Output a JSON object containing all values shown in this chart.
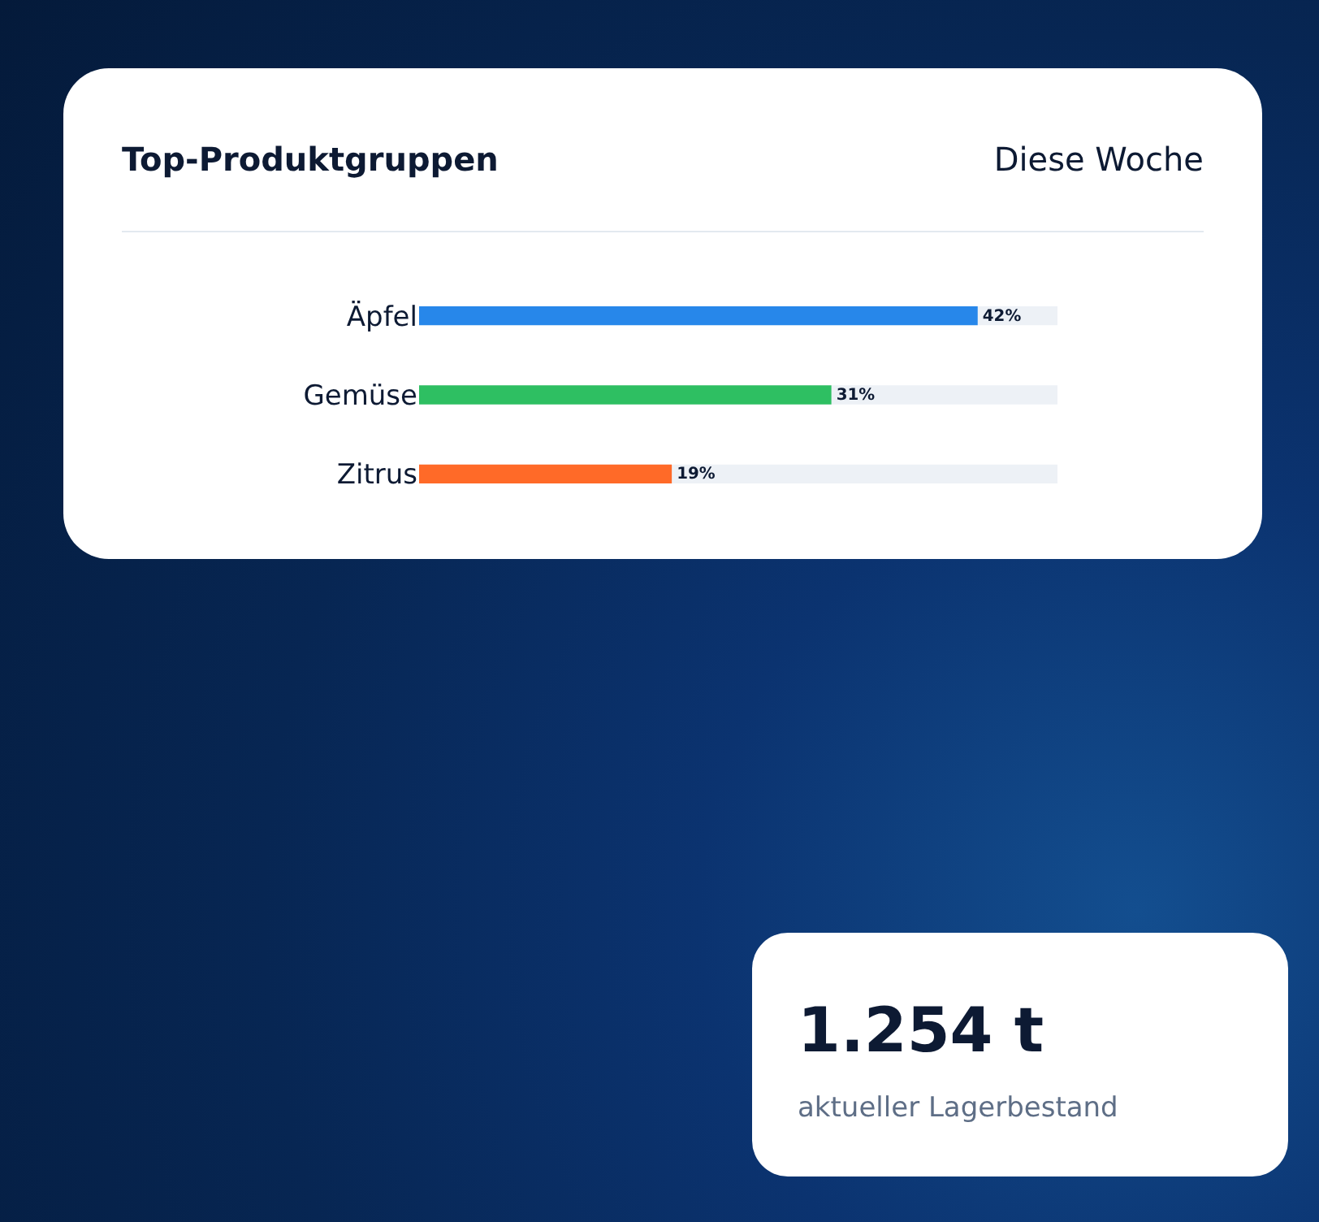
{
  "chart_data": [
    {
      "type": "bar",
      "orientation": "horizontal",
      "title": "Top-Produktgruppen",
      "subtitle": "Diese Woche",
      "categories": [
        "Äpfel",
        "Gemüse",
        "Zitrus"
      ],
      "values": [
        42,
        31,
        19
      ],
      "value_labels": [
        "42%",
        "31%",
        "19%"
      ],
      "colors": [
        "#2787ea",
        "#2ebf62",
        "#ff6a28"
      ],
      "xlim": [
        0,
        48
      ],
      "tick_labels": "y"
    },
    {
      "type": "other",
      "title": "1.254 t",
      "subtitle": "aktueller Lagerbestand"
    }
  ]
}
